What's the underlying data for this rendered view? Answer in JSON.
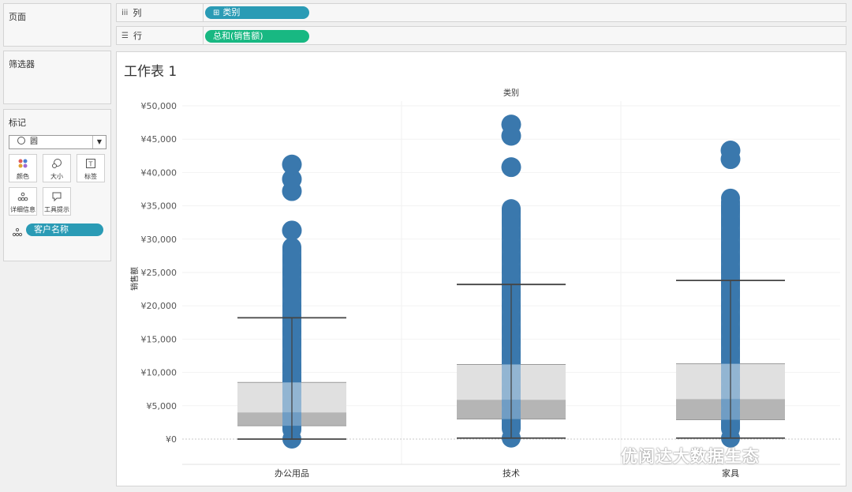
{
  "left_panel": {
    "pages_title": "页面",
    "filters_title": "筛选器",
    "marks_title": "标记",
    "mark_type": "圆",
    "mark_buttons": [
      {
        "label": "颜色",
        "icon": "color-dots-icon"
      },
      {
        "label": "大小",
        "icon": "size-icon"
      },
      {
        "label": "标签",
        "icon": "label-icon"
      },
      {
        "label": "详细信息",
        "icon": "detail-icon"
      },
      {
        "label": "工具提示",
        "icon": "tooltip-icon"
      }
    ],
    "detail_pill": "客户名称"
  },
  "shelves": {
    "columns_label": "列",
    "columns_pill": "类别",
    "rows_label": "行",
    "rows_pill": "总和(销售额)"
  },
  "worksheet": {
    "title": "工作表 1"
  },
  "watermark": "优阅达大数据生态",
  "chart_data": {
    "type": "scatter",
    "title": "类别",
    "xlabel": "",
    "ylabel": "销售额",
    "categories": [
      "办公用品",
      "技术",
      "家具"
    ],
    "ylim": [
      -4000,
      51000
    ],
    "yticks": [
      0,
      5000,
      10000,
      15000,
      20000,
      25000,
      30000,
      35000,
      40000,
      45000,
      50000
    ],
    "ytick_labels": [
      "¥0",
      "¥5,000",
      "¥10,000",
      "¥15,000",
      "¥20,000",
      "¥25,000",
      "¥30,000",
      "¥35,000",
      "¥40,000",
      "¥45,000",
      "¥50,000"
    ],
    "mark_color": "#3a78ad",
    "box_color_upper": "#e0e0e0",
    "box_color_lower": "#b5b5b5",
    "boxplots": [
      {
        "category": "办公用品",
        "min": 0,
        "q1": 2000,
        "median": 4000,
        "q3": 8500,
        "whisker_high": 18200
      },
      {
        "category": "技术",
        "min": 150,
        "q1": 3000,
        "median": 5900,
        "q3": 11200,
        "whisker_high": 23200
      },
      {
        "category": "家具",
        "min": 150,
        "q1": 2900,
        "median": 6000,
        "q3": 11300,
        "whisker_high": 23800
      }
    ],
    "points": [
      {
        "category": "办公用品",
        "dense_max": 30000,
        "outliers": [
          31300,
          37200,
          39000,
          41200
        ]
      },
      {
        "category": "技术",
        "dense_max": 36000,
        "outliers": [
          40800,
          45500,
          47200
        ]
      },
      {
        "category": "家具",
        "dense_max": 37000,
        "outliers": [
          42000,
          43300
        ]
      }
    ]
  }
}
